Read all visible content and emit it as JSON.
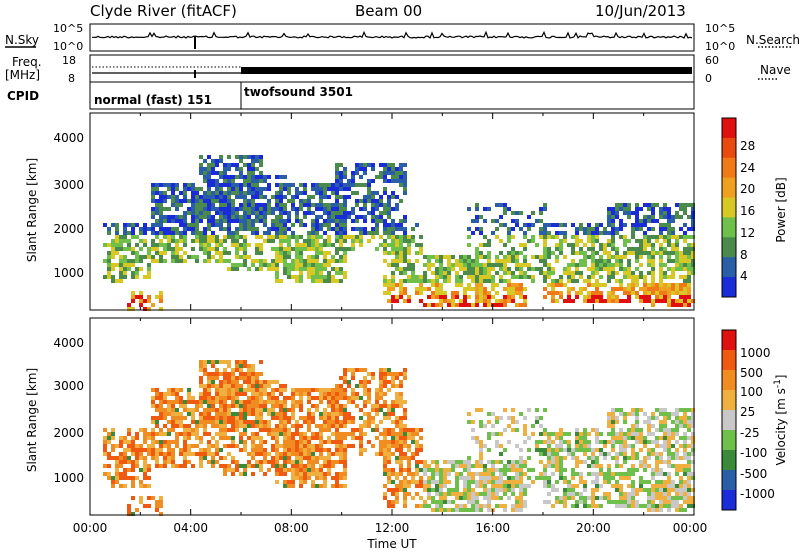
{
  "header": {
    "station": "Clyde River (fitACF)",
    "beam": "Beam 00",
    "date": "10/Jun/2013"
  },
  "panel_labels": {
    "nsky": "N.Sky",
    "nsearch": "N.Search",
    "freq": "Freq.",
    "freq_unit": "[MHz]",
    "nave": "Nave",
    "cpid": "CPID"
  },
  "colors": {
    "power": [
      "#1a2bd8",
      "#2a5fa8",
      "#4a8a4a",
      "#6fc04a",
      "#d8c826",
      "#f0a020",
      "#f07a18",
      "#e84a10",
      "#e01010"
    ],
    "velocity": [
      "#e01010",
      "#f05a10",
      "#f08c20",
      "#f0b040",
      "#c8c8c8",
      "#6fc04a",
      "#3a8a3a",
      "#2a5fa8",
      "#1a2bd8"
    ]
  },
  "chart_data": [
    {
      "type": "line",
      "name": "noise",
      "ylabels": [
        "10^5",
        "10^0"
      ],
      "right_labels": [
        "10^5",
        "10^0"
      ],
      "x": [
        "00:00",
        "04:00",
        "08:00",
        "12:00",
        "16:00",
        "20:00",
        "00:00"
      ]
    },
    {
      "type": "line",
      "name": "frequency",
      "ylabels": [
        "18",
        "8"
      ],
      "right_labels": [
        "60",
        "0"
      ],
      "cpid": [
        {
          "label": "normal (fast) 151",
          "start_hour": 0,
          "end_hour": 6
        },
        {
          "label": "twofsound 3501",
          "start_hour": 6,
          "end_hour": 24
        }
      ]
    },
    {
      "type": "heatmap",
      "name": "power",
      "ylabel": "Slant Range [km]",
      "yticks": [
        "4000",
        "3000",
        "2000",
        "1000"
      ],
      "colorbar_label": "Power [dB]",
      "colorbar_ticks": [
        "28",
        "24",
        "20",
        "16",
        "12",
        "8",
        "4"
      ]
    },
    {
      "type": "heatmap",
      "name": "velocity",
      "ylabel": "Slant Range [km]",
      "yticks": [
        "4000",
        "3000",
        "2000",
        "1000"
      ],
      "colorbar_label": "Velocity [m s",
      "colorbar_label_sup": "-1",
      "colorbar_label_end": "]",
      "colorbar_ticks": [
        "1000",
        "500",
        "100",
        "25",
        "-25",
        "-100",
        "-500",
        "-1000"
      ],
      "xticks": [
        "00:00",
        "04:00",
        "08:00",
        "12:00",
        "16:00",
        "20:00",
        "00:00"
      ],
      "xlabel": "Time UT"
    }
  ]
}
